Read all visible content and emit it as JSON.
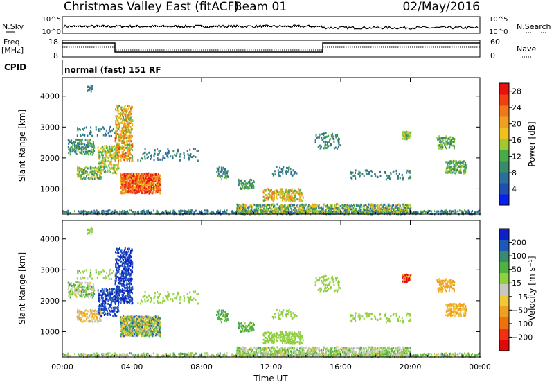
{
  "header": {
    "station": "Christmas Valley East (fitACF)",
    "beam": "Beam 01",
    "date": "02/May/2016"
  },
  "param_panels": {
    "nsky_label": "N.Sky",
    "nsearch_label": "N.Search",
    "noise_ticks_left": [
      "10^5",
      "10^0"
    ],
    "noise_ticks_right": [
      "10^5",
      "10^0"
    ],
    "freq_label_1": "Freq.",
    "freq_label_2": "[MHz]",
    "freq_ticks": [
      "18",
      "8"
    ],
    "nave_label": "Nave",
    "nave_ticks": [
      "60",
      "0"
    ],
    "cpid_label": "CPID",
    "cpid_text": "normal (fast) 151 RF"
  },
  "colors": {
    "power": [
      "#0a1ef0",
      "#1f4fb0",
      "#2e6e9a",
      "#3a8a6a",
      "#4aaa48",
      "#a0c830",
      "#f0c020",
      "#f0a020",
      "#f07818",
      "#f04010",
      "#e81010"
    ],
    "velocity": [
      "#1020c8",
      "#2058b8",
      "#3a8a70",
      "#50b040",
      "#90d040",
      "#c8c8c0",
      "#f0c838",
      "#f0a020",
      "#f07010",
      "#f03010",
      "#e00808"
    ]
  },
  "chart_data": [
    {
      "type": "heatmap",
      "name": "power",
      "ylabel": "Slant Range [km]",
      "ylim": [
        180,
        4600
      ],
      "yticks": [
        "1000",
        "2000",
        "3000",
        "4000"
      ],
      "xlim": [
        0,
        24
      ],
      "xticks": [
        "00:00",
        "04:00",
        "08:00",
        "12:00",
        "16:00",
        "20:00",
        "00:00"
      ],
      "colorbar": {
        "label": "Power [dB]",
        "ticks": [
          "4",
          "8",
          "12",
          "16",
          "20",
          "24",
          "28"
        ],
        "range": [
          0,
          30
        ]
      }
    },
    {
      "type": "heatmap",
      "name": "velocity",
      "ylabel": "Slant Range [km]",
      "ylim": [
        180,
        4600
      ],
      "yticks": [
        "1000",
        "2000",
        "3000",
        "4000"
      ],
      "xlim": [
        0,
        24
      ],
      "xticks": [
        "00:00",
        "04:00",
        "08:00",
        "12:00",
        "16:00",
        "20:00",
        "00:00"
      ],
      "xlabel": "Time UT",
      "colorbar": {
        "label": "Velocity [m s⁻¹]",
        "ticks": [
          "200",
          "100",
          "50",
          "15",
          "−15",
          "−50",
          "−100",
          "−200"
        ]
      }
    }
  ],
  "scatter_regions": [
    {
      "t0": 0.3,
      "t1": 1.8,
      "r0": 2100,
      "r1": 2600,
      "d": 0.35,
      "p": [
        6,
        14
      ],
      "v": [
        -60,
        60
      ]
    },
    {
      "t0": 0.8,
      "t1": 2.2,
      "r0": 1300,
      "r1": 1700,
      "d": 0.35,
      "p": [
        8,
        18
      ],
      "v": [
        -150,
        -20
      ]
    },
    {
      "t0": 0.8,
      "t1": 3.0,
      "r0": 2700,
      "r1": 3000,
      "d": 0.15,
      "p": [
        6,
        10
      ],
      "v": [
        -20,
        20
      ]
    },
    {
      "t0": 1.4,
      "t1": 1.7,
      "r0": 4100,
      "r1": 4350,
      "d": 0.3,
      "p": [
        6,
        9
      ],
      "v": [
        -20,
        20
      ]
    },
    {
      "t0": 2.0,
      "t1": 3.2,
      "r0": 1500,
      "r1": 2400,
      "d": 0.3,
      "p": [
        10,
        20
      ],
      "v": [
        100,
        250
      ]
    },
    {
      "t0": 3.0,
      "t1": 4.0,
      "r0": 1900,
      "r1": 3700,
      "d": 0.35,
      "p": [
        12,
        26
      ],
      "v": [
        150,
        250
      ]
    },
    {
      "t0": 3.3,
      "t1": 5.6,
      "r0": 850,
      "r1": 1500,
      "d": 0.7,
      "p": [
        18,
        30
      ],
      "v": [
        -120,
        120
      ]
    },
    {
      "t0": 4.3,
      "t1": 7.8,
      "r0": 1900,
      "r1": 2300,
      "d": 0.1,
      "p": [
        6,
        10
      ],
      "v": [
        -15,
        15
      ]
    },
    {
      "t0": 8.8,
      "t1": 9.5,
      "r0": 1300,
      "r1": 1700,
      "d": 0.3,
      "p": [
        6,
        14
      ],
      "v": [
        10,
        60
      ]
    },
    {
      "t0": 10.0,
      "t1": 11.0,
      "r0": 1000,
      "r1": 1300,
      "d": 0.3,
      "p": [
        8,
        14
      ],
      "v": [
        10,
        60
      ]
    },
    {
      "t0": 11.5,
      "t1": 13.8,
      "r0": 600,
      "r1": 1000,
      "d": 0.35,
      "p": [
        12,
        24
      ],
      "v": [
        -15,
        15
      ]
    },
    {
      "t0": 12.0,
      "t1": 13.5,
      "r0": 1400,
      "r1": 1700,
      "d": 0.15,
      "p": [
        6,
        10
      ],
      "v": [
        -15,
        15
      ]
    },
    {
      "t0": 14.5,
      "t1": 16.0,
      "r0": 2300,
      "r1": 2800,
      "d": 0.15,
      "p": [
        6,
        12
      ],
      "v": [
        -15,
        15
      ]
    },
    {
      "t0": 16.5,
      "t1": 20.0,
      "r0": 1300,
      "r1": 1600,
      "d": 0.12,
      "p": [
        6,
        10
      ],
      "v": [
        -15,
        15
      ]
    },
    {
      "t0": 19.5,
      "t1": 20.0,
      "r0": 2600,
      "r1": 2850,
      "d": 0.5,
      "p": [
        10,
        18
      ],
      "v": [
        -250,
        -150
      ]
    },
    {
      "t0": 21.5,
      "t1": 22.5,
      "r0": 2300,
      "r1": 2700,
      "d": 0.35,
      "p": [
        8,
        16
      ],
      "v": [
        -200,
        -80
      ]
    },
    {
      "t0": 22.0,
      "t1": 23.2,
      "r0": 1500,
      "r1": 1900,
      "d": 0.4,
      "p": [
        8,
        16
      ],
      "v": [
        -200,
        -60
      ]
    },
    {
      "t0": 0.0,
      "t1": 24.0,
      "r0": 180,
      "r1": 300,
      "d": 0.3,
      "p": [
        4,
        12
      ],
      "v": [
        -60,
        60
      ]
    },
    {
      "t0": 10.0,
      "t1": 20.0,
      "r0": 180,
      "r1": 500,
      "d": 0.45,
      "p": [
        6,
        20
      ],
      "v": [
        -60,
        40
      ]
    }
  ]
}
